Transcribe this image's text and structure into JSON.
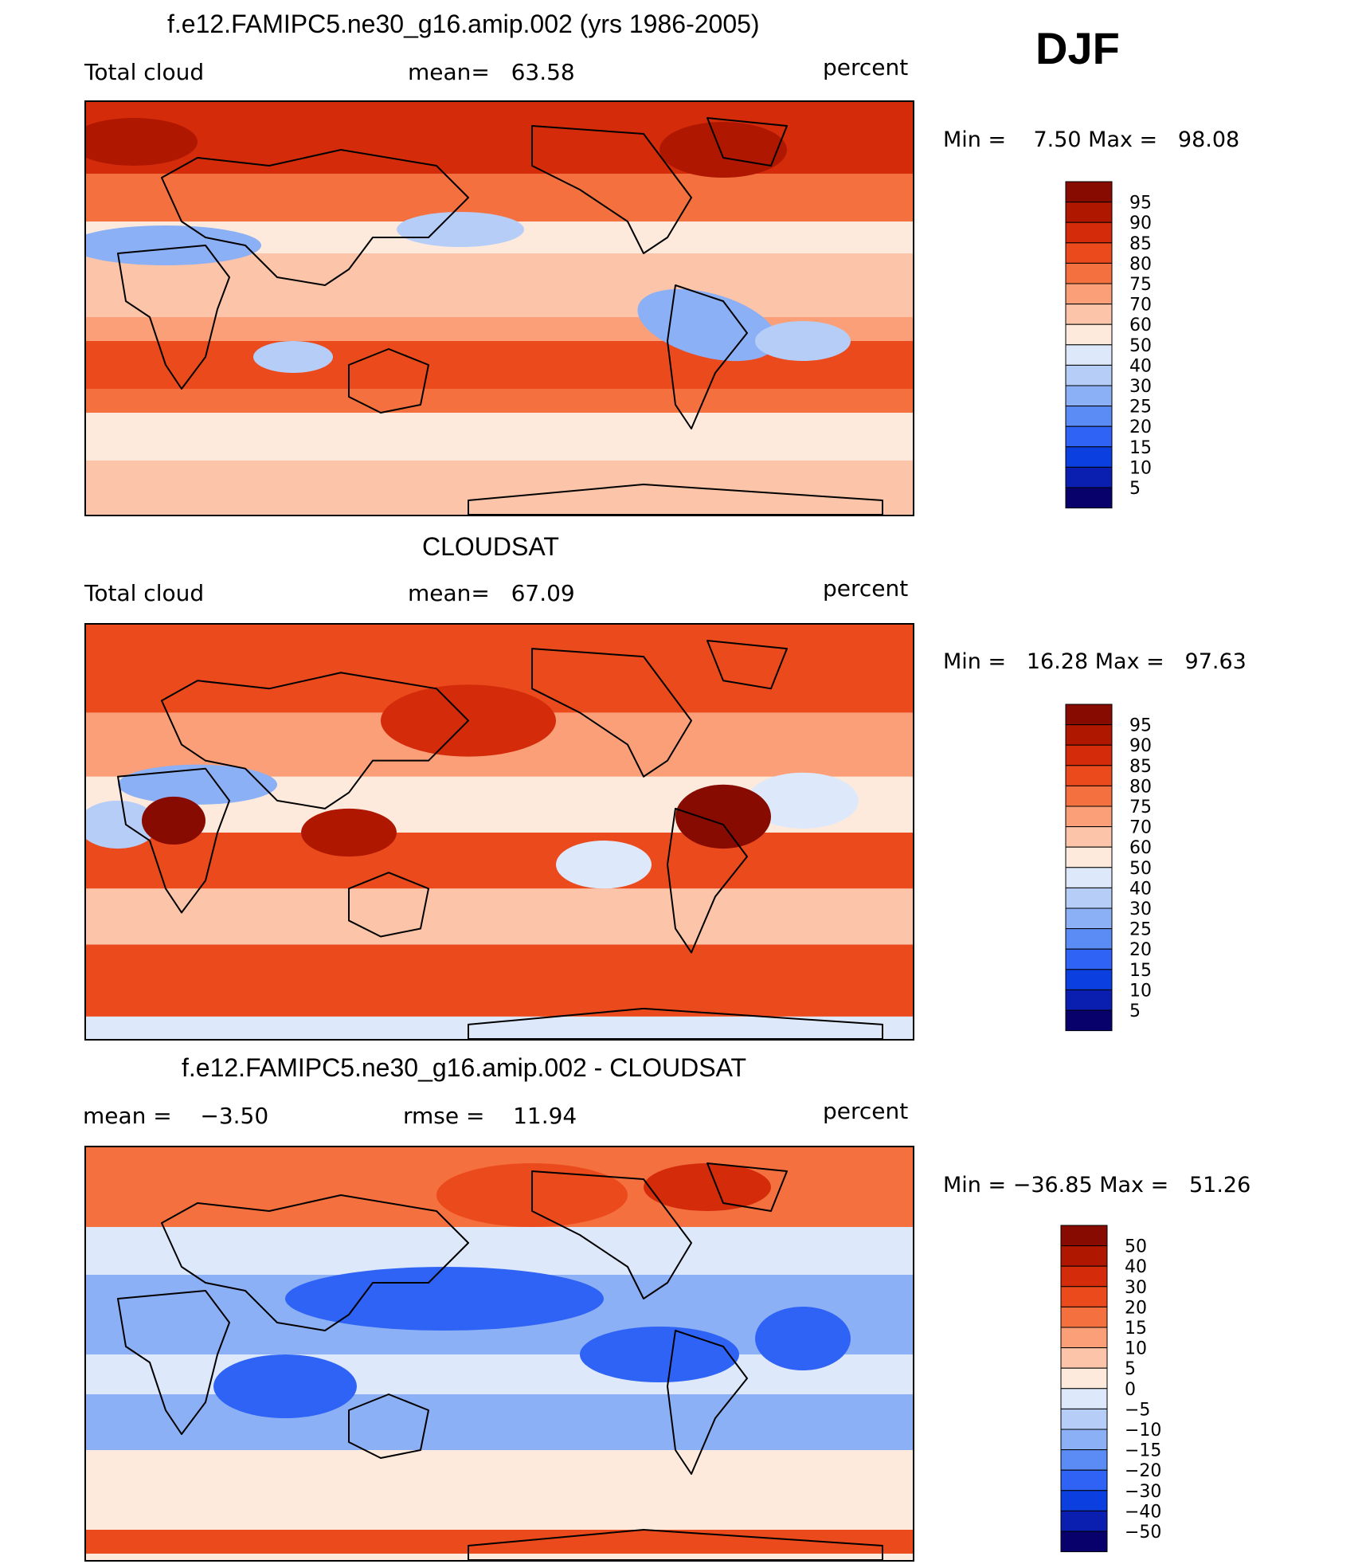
{
  "season": "DJF",
  "colors": {
    "abs_scale": [
      "#08006b",
      "#0a1fb0",
      "#0c3fe0",
      "#2e63f5",
      "#5b8cf5",
      "#8cb0f5",
      "#b5cdf7",
      "#dde9fb",
      "#fdeadc",
      "#fcc4a8",
      "#fa9f78",
      "#f5703f",
      "#eb4a1c",
      "#d42c0b",
      "#b01700",
      "#870b00"
    ],
    "diff_scale": [
      "#08006b",
      "#0a1fb0",
      "#0c3fe0",
      "#2e63f5",
      "#5b8cf5",
      "#8cb0f5",
      "#b5cdf7",
      "#dde9fb",
      "#fdeadc",
      "#fcc4a8",
      "#fa9f78",
      "#f5703f",
      "#eb4a1c",
      "#d42c0b",
      "#b01700",
      "#870b00"
    ]
  },
  "panels": [
    {
      "title": "f.e12.FAMIPC5.ne30_g16.amip.002 (yrs 1986-2005)",
      "left_label": "Total cloud",
      "center_label": "mean=   63.58",
      "right_label": "percent",
      "minmax": "Min =    7.50 Max =   98.08",
      "colorbar_labels": [
        "95",
        "90",
        "85",
        "80",
        "75",
        "70",
        "60",
        "50",
        "40",
        "30",
        "25",
        "20",
        "15",
        "10",
        "5"
      ],
      "map_icon": "world-map"
    },
    {
      "title": "CLOUDSAT",
      "left_label": "Total cloud",
      "center_label": "mean=   67.09",
      "right_label": "percent",
      "minmax": "Min =   16.28 Max =   97.63",
      "colorbar_labels": [
        "95",
        "90",
        "85",
        "80",
        "75",
        "70",
        "60",
        "50",
        "40",
        "30",
        "25",
        "20",
        "15",
        "10",
        "5"
      ],
      "map_icon": "world-map"
    },
    {
      "title": "f.e12.FAMIPC5.ne30_g16.amip.002 - CLOUDSAT",
      "left_label": "mean =    −3.50",
      "center_label": "rmse =    11.94",
      "right_label": "percent",
      "minmax": "Min = −36.85 Max =   51.26",
      "colorbar_labels": [
        "50",
        "40",
        "30",
        "20",
        "15",
        "10",
        "5",
        "0",
        "−5",
        "−10",
        "−15",
        "−20",
        "−30",
        "−40",
        "−50"
      ],
      "map_icon": "world-map"
    }
  ]
}
